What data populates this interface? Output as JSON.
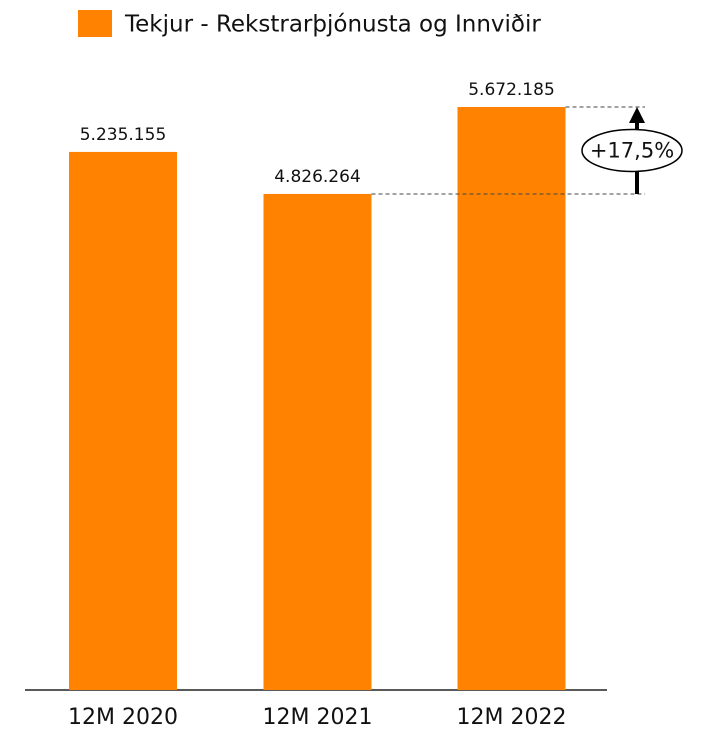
{
  "chart_data": {
    "type": "bar",
    "legend": "Tekjur - Rekstrarþjónusta og Innviðir",
    "categories": [
      "12M 2020",
      "12M 2021",
      "12M 2022"
    ],
    "values": [
      5235155,
      4826264,
      5672185
    ],
    "value_labels": [
      "5.235.155",
      "4.826.264",
      "5.672.185"
    ],
    "color": "#ff8300",
    "annotation": "+17,5%"
  }
}
